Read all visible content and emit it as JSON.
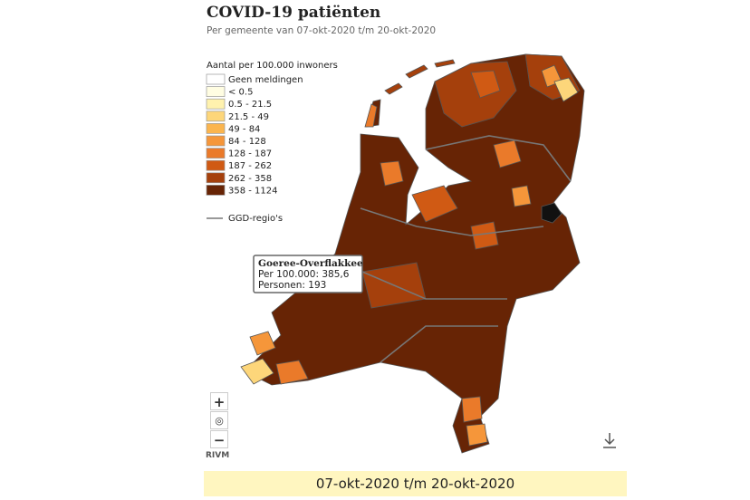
{
  "header": {
    "title": "COVID-19 patiënten",
    "subtitle": "Per gemeente van 07-okt-2020 t/m 20-okt-2020"
  },
  "legend": {
    "title": "Aantal per 100.000 inwoners",
    "items": [
      {
        "label": "Geen meldingen",
        "color": "#ffffff"
      },
      {
        "label": "< 0.5",
        "color": "#fffde2"
      },
      {
        "label": "0.5 - 21.5",
        "color": "#fff2ae"
      },
      {
        "label": "21.5 - 49",
        "color": "#fdd67a"
      },
      {
        "label": "49 - 84",
        "color": "#fbb54e"
      },
      {
        "label": "84 - 128",
        "color": "#f5963a"
      },
      {
        "label": "128 - 187",
        "color": "#ea7a2a"
      },
      {
        "label": "187 - 262",
        "color": "#d05a14"
      },
      {
        "label": "262 - 358",
        "color": "#a5400c"
      },
      {
        "label": "358 - 1124",
        "color": "#672405"
      }
    ],
    "region_label": "GGD-regio's"
  },
  "tooltip": {
    "name": "Goeree-Overflakkee",
    "lines": [
      "Per 100.000: 385,6",
      "Personen: 193"
    ]
  },
  "controls": {
    "zoom_in": "+",
    "zoom_out": "−"
  },
  "source": "RIVM",
  "footer": {
    "date_range": "07-okt-2020 t/m 20-okt-2020"
  }
}
